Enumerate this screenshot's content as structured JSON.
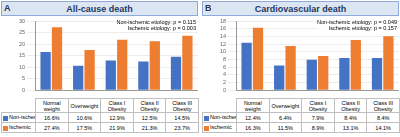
{
  "chart_data": [
    {
      "type": "bar",
      "panel": "A",
      "title": "All-cause death",
      "categories": [
        "Normal weight",
        "Overweight",
        "Class I Obesity",
        "Class II Obesity",
        "Class III Obesity"
      ],
      "series": [
        {
          "name": "Non-ischemic",
          "color": "#4472c4",
          "values": [
            16.6,
            10.6,
            12.9,
            12.5,
            14.5
          ],
          "value_labels": [
            "16.6%",
            "10.6%",
            "12.9%",
            "12.5%",
            "14.5%"
          ]
        },
        {
          "name": "Ischemic",
          "color": "#ed7d31",
          "values": [
            27.4,
            17.5,
            21.9,
            21.3,
            23.7
          ],
          "value_labels": [
            "27.4%",
            "17.5%",
            "21.9%",
            "21.3%",
            "23.7%"
          ]
        }
      ],
      "annotations": [
        "Non-ischemic etiology: p = 0.115",
        "Ischemic etiology: p = 0.003"
      ],
      "ylim": [
        0,
        30
      ],
      "yticks": [
        0,
        5,
        10,
        15,
        20,
        25,
        30
      ],
      "grid": true,
      "tick_labels": "y",
      "data_labels": false
    },
    {
      "type": "bar",
      "panel": "B",
      "title": "Cardiovascular death",
      "categories": [
        "Normal weight",
        "Overweight",
        "Class I Obesity",
        "Class II Obesity",
        "Class III Obesity"
      ],
      "series": [
        {
          "name": "Non-ischemic",
          "color": "#4472c4",
          "values": [
            12.4,
            6.4,
            7.9,
            8.4,
            8.4
          ],
          "value_labels": [
            "12.4%",
            "6.4%",
            "7.9%",
            "8.4%",
            "8.4%"
          ]
        },
        {
          "name": "Ischemic",
          "color": "#ed7d31",
          "values": [
            16.3,
            11.5,
            8.9,
            13.1,
            14.1
          ],
          "value_labels": [
            "16.3%",
            "11.5%",
            "8.9%",
            "13.1%",
            "14.1%"
          ]
        }
      ],
      "annotations": [
        "Non-ischemic etiology: p = 0.049",
        "Ischemic etiology: p = 0.157"
      ],
      "ylim": [
        0,
        18
      ],
      "yticks": [
        0,
        2,
        4,
        6,
        8,
        10,
        12,
        14,
        16,
        18
      ],
      "grid": true,
      "tick_labels": "y",
      "data_labels": false
    }
  ]
}
